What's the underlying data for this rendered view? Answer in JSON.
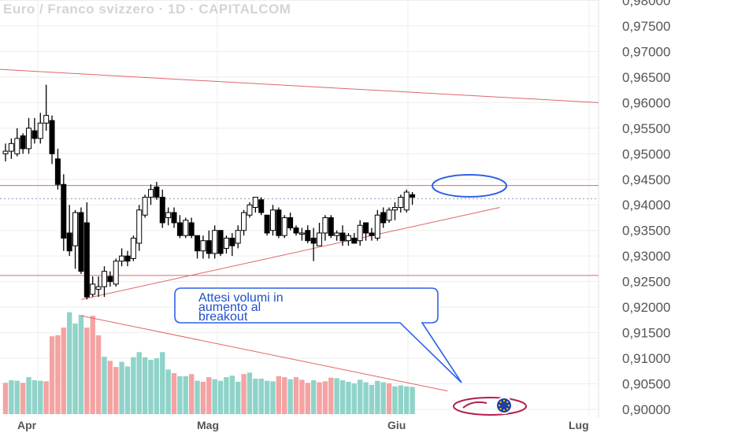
{
  "title": "Euro / Franco svizzero · 1D · CAPITALCOM",
  "colors": {
    "up_candle_fill": "#ffffff",
    "down_candle_fill": "#000000",
    "up_volume": "#8fd3c9",
    "down_volume": "#f4a3a3",
    "trendline": "#e06666",
    "annotation": "#2e63e6",
    "grid": "#eeeeee",
    "axis_text": "#555555",
    "current_price_line": "#9aa0c0"
  },
  "annotation": {
    "lines": [
      "Attesi volumi in",
      "aumento al",
      "breakout"
    ]
  },
  "chart_data": {
    "type": "candlestick",
    "y_axis": {
      "range": [
        0.9,
        0.981
      ],
      "ticks": [
        "0,90000",
        "0,90500",
        "0,91000",
        "0,91500",
        "0,92000",
        "0,92500",
        "0,93000",
        "0,93500",
        "0,94000",
        "0,94500",
        "0,95000",
        "0,95500",
        "0,96000",
        "0,96500",
        "0,97000",
        "0,97500",
        "0,98000"
      ]
    },
    "x_axis": {
      "labels": [
        "Apr",
        "Mag",
        "Giu",
        "Lug"
      ]
    },
    "current_price": 0.9412,
    "candles": [
      [
        0.95,
        0.952,
        0.9485,
        0.9505
      ],
      [
        0.9505,
        0.953,
        0.949,
        0.952
      ],
      [
        0.95,
        0.955,
        0.9495,
        0.953
      ],
      [
        0.9535,
        0.954,
        0.95,
        0.951
      ],
      [
        0.951,
        0.957,
        0.95,
        0.955
      ],
      [
        0.9545,
        0.957,
        0.952,
        0.953
      ],
      [
        0.953,
        0.958,
        0.952,
        0.956
      ],
      [
        0.956,
        0.9635,
        0.9545,
        0.9575
      ],
      [
        0.9565,
        0.9575,
        0.948,
        0.95
      ],
      [
        0.949,
        0.951,
        0.943,
        0.944
      ],
      [
        0.944,
        0.946,
        0.931,
        0.9335
      ],
      [
        0.9345,
        0.94,
        0.93,
        0.931
      ],
      [
        0.932,
        0.939,
        0.9275,
        0.9385
      ],
      [
        0.9385,
        0.9395,
        0.9265,
        0.927
      ],
      [
        0.9365,
        0.9405,
        0.9215,
        0.922
      ],
      [
        0.9225,
        0.926,
        0.922,
        0.9245
      ],
      [
        0.9235,
        0.926,
        0.922,
        0.924
      ],
      [
        0.924,
        0.928,
        0.922,
        0.927
      ],
      [
        0.926,
        0.927,
        0.924,
        0.925
      ],
      [
        0.9245,
        0.9295,
        0.924,
        0.929
      ],
      [
        0.929,
        0.9315,
        0.928,
        0.93
      ],
      [
        0.93,
        0.931,
        0.928,
        0.929
      ],
      [
        0.9295,
        0.934,
        0.929,
        0.9335
      ],
      [
        0.9325,
        0.94,
        0.931,
        0.939
      ],
      [
        0.938,
        0.942,
        0.9375,
        0.9415
      ],
      [
        0.9415,
        0.944,
        0.94,
        0.943
      ],
      [
        0.9435,
        0.9445,
        0.941,
        0.9415
      ],
      [
        0.9415,
        0.943,
        0.9355,
        0.9365
      ],
      [
        0.9375,
        0.9395,
        0.936,
        0.9385
      ],
      [
        0.9385,
        0.9395,
        0.9355,
        0.9365
      ],
      [
        0.9365,
        0.938,
        0.9335,
        0.934
      ],
      [
        0.934,
        0.9375,
        0.9335,
        0.937
      ],
      [
        0.9365,
        0.9375,
        0.9335,
        0.934
      ],
      [
        0.934,
        0.934,
        0.9295,
        0.931
      ],
      [
        0.931,
        0.934,
        0.9295,
        0.933
      ],
      [
        0.933,
        0.935,
        0.9295,
        0.9305
      ],
      [
        0.9305,
        0.936,
        0.9295,
        0.935
      ],
      [
        0.935,
        0.935,
        0.93,
        0.9305
      ],
      [
        0.9315,
        0.934,
        0.9305,
        0.9335
      ],
      [
        0.9335,
        0.9345,
        0.93,
        0.932
      ],
      [
        0.9325,
        0.936,
        0.9315,
        0.935
      ],
      [
        0.935,
        0.939,
        0.934,
        0.9385
      ],
      [
        0.938,
        0.9405,
        0.9375,
        0.94
      ],
      [
        0.9395,
        0.9415,
        0.9385,
        0.9415
      ],
      [
        0.941,
        0.9415,
        0.938,
        0.9385
      ],
      [
        0.938,
        0.938,
        0.934,
        0.9345
      ],
      [
        0.935,
        0.94,
        0.934,
        0.939
      ],
      [
        0.939,
        0.9395,
        0.9335,
        0.934
      ],
      [
        0.934,
        0.938,
        0.9335,
        0.9375
      ],
      [
        0.9375,
        0.9385,
        0.935,
        0.9355
      ],
      [
        0.9355,
        0.936,
        0.934,
        0.9345
      ],
      [
        0.9345,
        0.9355,
        0.933,
        0.9345
      ],
      [
        0.935,
        0.936,
        0.9325,
        0.933
      ],
      [
        0.9335,
        0.9355,
        0.929,
        0.9325
      ],
      [
        0.932,
        0.9365,
        0.932,
        0.9345
      ],
      [
        0.9345,
        0.938,
        0.933,
        0.9375
      ],
      [
        0.9375,
        0.938,
        0.9335,
        0.934
      ],
      [
        0.934,
        0.935,
        0.933,
        0.9345
      ],
      [
        0.9345,
        0.936,
        0.932,
        0.933
      ],
      [
        0.933,
        0.9345,
        0.932,
        0.934
      ],
      [
        0.9335,
        0.9345,
        0.9325,
        0.9325
      ],
      [
        0.933,
        0.937,
        0.932,
        0.936
      ],
      [
        0.9365,
        0.9365,
        0.933,
        0.9345
      ],
      [
        0.9345,
        0.9355,
        0.933,
        0.934
      ],
      [
        0.9335,
        0.939,
        0.933,
        0.938
      ],
      [
        0.9385,
        0.9395,
        0.9355,
        0.9365
      ],
      [
        0.937,
        0.9395,
        0.9365,
        0.939
      ],
      [
        0.939,
        0.9405,
        0.937,
        0.9395
      ],
      [
        0.9395,
        0.942,
        0.9385,
        0.9415
      ],
      [
        0.939,
        0.943,
        0.9385,
        0.9425
      ],
      [
        0.942,
        0.9425,
        0.94,
        0.9415
      ]
    ],
    "volumes": [
      {
        "v": 0.9052,
        "up": false
      },
      {
        "v": 0.9057,
        "up": true
      },
      {
        "v": 0.9056,
        "up": true
      },
      {
        "v": 0.9052,
        "up": false
      },
      {
        "v": 0.9063,
        "up": true
      },
      {
        "v": 0.9057,
        "up": true
      },
      {
        "v": 0.9056,
        "up": true
      },
      {
        "v": 0.9055,
        "up": false
      },
      {
        "v": 0.9143,
        "up": false
      },
      {
        "v": 0.9145,
        "up": false
      },
      {
        "v": 0.916,
        "up": false
      },
      {
        "v": 0.919,
        "up": true
      },
      {
        "v": 0.9168,
        "up": true
      },
      {
        "v": 0.9185,
        "up": true
      },
      {
        "v": 0.916,
        "up": false
      },
      {
        "v": 0.9183,
        "up": false
      },
      {
        "v": 0.9145,
        "up": false
      },
      {
        "v": 0.9103,
        "up": true
      },
      {
        "v": 0.9095,
        "up": false
      },
      {
        "v": 0.9083,
        "up": false
      },
      {
        "v": 0.9093,
        "up": true
      },
      {
        "v": 0.9084,
        "up": true
      },
      {
        "v": 0.9102,
        "up": true
      },
      {
        "v": 0.9112,
        "up": true
      },
      {
        "v": 0.9102,
        "up": true
      },
      {
        "v": 0.9097,
        "up": true
      },
      {
        "v": 0.91,
        "up": true
      },
      {
        "v": 0.9112,
        "up": true
      },
      {
        "v": 0.9078,
        "up": true
      },
      {
        "v": 0.9071,
        "up": false
      },
      {
        "v": 0.9065,
        "up": true
      },
      {
        "v": 0.9065,
        "up": true
      },
      {
        "v": 0.9069,
        "up": false
      },
      {
        "v": 0.9056,
        "up": true
      },
      {
        "v": 0.9054,
        "up": false
      },
      {
        "v": 0.9063,
        "up": false
      },
      {
        "v": 0.9059,
        "up": true
      },
      {
        "v": 0.9056,
        "up": true
      },
      {
        "v": 0.9063,
        "up": true
      },
      {
        "v": 0.9066,
        "up": true
      },
      {
        "v": 0.9054,
        "up": true
      },
      {
        "v": 0.9069,
        "up": false
      },
      {
        "v": 0.9072,
        "up": true
      },
      {
        "v": 0.906,
        "up": true
      },
      {
        "v": 0.906,
        "up": true
      },
      {
        "v": 0.9056,
        "up": true
      },
      {
        "v": 0.9055,
        "up": true
      },
      {
        "v": 0.9065,
        "up": false
      },
      {
        "v": 0.9063,
        "up": false
      },
      {
        "v": 0.9059,
        "up": true
      },
      {
        "v": 0.9063,
        "up": false
      },
      {
        "v": 0.9058,
        "up": false
      },
      {
        "v": 0.9052,
        "up": false
      },
      {
        "v": 0.9057,
        "up": true
      },
      {
        "v": 0.9053,
        "up": false
      },
      {
        "v": 0.9055,
        "up": false
      },
      {
        "v": 0.9062,
        "up": false
      },
      {
        "v": 0.9061,
        "up": true
      },
      {
        "v": 0.9057,
        "up": true
      },
      {
        "v": 0.9054,
        "up": true
      },
      {
        "v": 0.9051,
        "up": true
      },
      {
        "v": 0.9058,
        "up": true
      },
      {
        "v": 0.9053,
        "up": true
      },
      {
        "v": 0.9048,
        "up": true
      },
      {
        "v": 0.9056,
        "up": true
      },
      {
        "v": 0.9053,
        "up": true
      },
      {
        "v": 0.9051,
        "up": false
      },
      {
        "v": 0.9045,
        "up": true
      },
      {
        "v": 0.9047,
        "up": true
      },
      {
        "v": 0.9045,
        "up": true
      },
      {
        "v": 0.9044,
        "up": true
      }
    ],
    "lines": [
      {
        "name": "upper-channel",
        "from": [
          0,
          0.9665
        ],
        "to": [
          103,
          0.96
        ]
      },
      {
        "name": "resistance",
        "from": [
          0,
          0.9438
        ],
        "to": [
          103,
          0.9438
        ]
      },
      {
        "name": "support",
        "from": [
          0,
          0.9262
        ],
        "to": [
          103,
          0.9262
        ]
      },
      {
        "name": "ascending-trendline",
        "from": [
          14,
          0.9215
        ],
        "to": [
          86,
          0.9395
        ]
      },
      {
        "name": "volume-trendline",
        "from": [
          14,
          0.9183
        ],
        "to": [
          77,
          0.9036
        ]
      }
    ]
  }
}
